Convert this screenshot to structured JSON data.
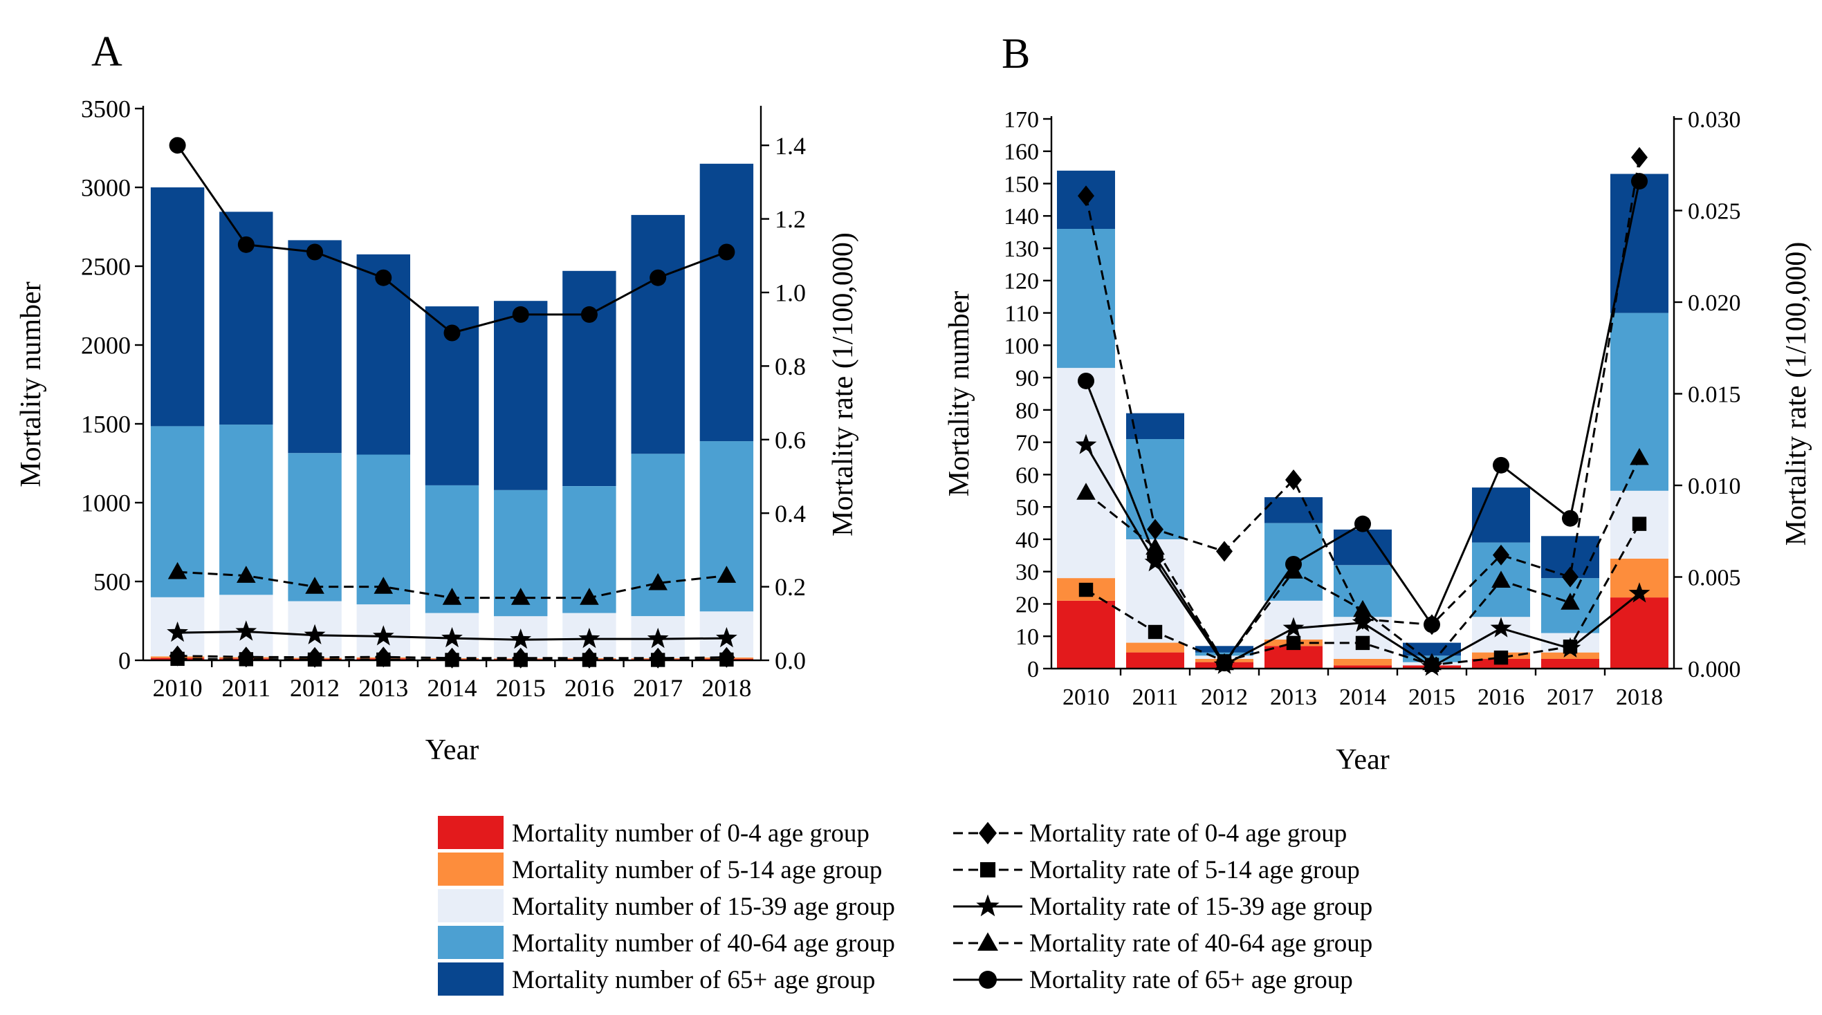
{
  "colors": {
    "age_0_4": "#e31a1c",
    "age_5_14": "#fd8d3c",
    "age_15_39": "#e8eef8",
    "age_40_64": "#4ca0d2",
    "age_65_plus": "#08468f",
    "line": "#000000"
  },
  "legend": {
    "bars": [
      {
        "key": "age_0_4",
        "label": "Mortality number of 0-4 age group"
      },
      {
        "key": "age_5_14",
        "label": "Mortality number of 5-14 age group"
      },
      {
        "key": "age_15_39",
        "label": "Mortality  number of 15-39 age group"
      },
      {
        "key": "age_40_64",
        "label": "Mortality  number of 40-64 age group"
      },
      {
        "key": "age_65_plus",
        "label": "Mortality  number of 65+ age group"
      }
    ],
    "lines": [
      {
        "key": "age_0_4",
        "marker": "diamond",
        "dash": true,
        "label": "Mortality rate of 0-4 age group"
      },
      {
        "key": "age_5_14",
        "marker": "square",
        "dash": true,
        "label": "Mortality  rate of 5-14 age group"
      },
      {
        "key": "age_15_39",
        "marker": "star",
        "dash": false,
        "label": "Mortality  rate of 15-39 age group"
      },
      {
        "key": "age_40_64",
        "marker": "triangle",
        "dash": true,
        "label": "Mortality  rate of 40-64 age group"
      },
      {
        "key": "age_65_plus",
        "marker": "circle",
        "dash": false,
        "label": "Mortality  rate of  65+ age group"
      }
    ]
  },
  "chart_data": [
    {
      "panel_label": "A",
      "type": "bar",
      "stacked": true,
      "categories": [
        "2010",
        "2011",
        "2012",
        "2013",
        "2014",
        "2015",
        "2016",
        "2017",
        "2018"
      ],
      "xlabel": "Year",
      "ylabel": "Mortality  number",
      "y2label": "Mortality rate (1/100,000)",
      "ylim": [
        0,
        3500
      ],
      "y2lim": [
        0,
        1.5
      ],
      "yticks": [
        0,
        500,
        1000,
        1500,
        2000,
        2500,
        3000,
        3500
      ],
      "yticklabels": [
        "0",
        "500",
        "1000",
        "1500",
        "2000",
        "2500",
        "3000",
        "3500"
      ],
      "y2ticks": [
        0,
        0.2,
        0.4,
        0.6,
        0.8,
        1.0,
        1.2,
        1.4
      ],
      "y2ticklabels": [
        "0.0",
        "0.2",
        "0.4",
        "0.6",
        "0.8",
        "1.0",
        "1.2",
        "1.4"
      ],
      "bar_series": [
        {
          "key": "age_0_4",
          "name": "Mortality number of 0-4 age group",
          "values": [
            15,
            12,
            10,
            12,
            8,
            8,
            8,
            8,
            10
          ]
        },
        {
          "key": "age_5_14",
          "name": "Mortality number of 5-14 age group",
          "values": [
            10,
            8,
            6,
            7,
            5,
            4,
            5,
            5,
            8
          ]
        },
        {
          "key": "age_15_39",
          "name": "Mortality  number of 15-39 age group",
          "values": [
            375,
            395,
            359,
            336,
            287,
            268,
            287,
            267,
            292
          ]
        },
        {
          "key": "age_40_64",
          "name": "Mortality  number of 40-64 age group",
          "values": [
            1085,
            1080,
            940,
            950,
            810,
            800,
            805,
            1030,
            1080
          ]
        },
        {
          "key": "age_65_plus",
          "name": "Mortality  number of 65+ age group",
          "values": [
            1515,
            1350,
            1350,
            1270,
            1135,
            1200,
            1365,
            1515,
            1760
          ]
        }
      ],
      "line_series": [
        {
          "key": "age_0_4",
          "name": "Mortality rate of 0-4 age group",
          "marker": "diamond",
          "dash": true,
          "values": [
            0.012,
            0.009,
            0.008,
            0.009,
            0.006,
            0.006,
            0.006,
            0.006,
            0.008
          ]
        },
        {
          "key": "age_5_14",
          "name": "Mortality  rate of 5-14 age group",
          "marker": "square",
          "dash": true,
          "values": [
            0.004,
            0.003,
            0.002,
            0.002,
            0.001,
            0.001,
            0.001,
            0.001,
            0.002
          ]
        },
        {
          "key": "age_15_39",
          "name": "Mortality  rate of 15-39 age group",
          "marker": "star",
          "dash": false,
          "values": [
            0.075,
            0.078,
            0.068,
            0.065,
            0.06,
            0.056,
            0.058,
            0.058,
            0.06
          ]
        },
        {
          "key": "age_40_64",
          "name": "Mortality  rate of 40-64 age group",
          "marker": "triangle",
          "dash": true,
          "values": [
            0.24,
            0.23,
            0.2,
            0.2,
            0.17,
            0.17,
            0.17,
            0.21,
            0.23
          ]
        },
        {
          "key": "age_65_plus",
          "name": "Mortality  rate of  65+ age group",
          "marker": "circle",
          "dash": false,
          "values": [
            1.4,
            1.13,
            1.11,
            1.04,
            0.89,
            0.94,
            0.94,
            1.04,
            1.11
          ]
        }
      ]
    },
    {
      "panel_label": "B",
      "type": "bar",
      "stacked": true,
      "categories": [
        "2010",
        "2011",
        "2012",
        "2013",
        "2014",
        "2015",
        "2016",
        "2017",
        "2018"
      ],
      "xlabel": "Year",
      "ylabel": "Mortality  number",
      "y2label": "Mortality rate (1/100,000)",
      "ylim": [
        0,
        170
      ],
      "y2lim": [
        0,
        0.03
      ],
      "yticks": [
        0,
        10,
        20,
        30,
        40,
        50,
        60,
        70,
        80,
        90,
        100,
        110,
        120,
        130,
        140,
        150,
        160,
        170
      ],
      "yticklabels": [
        "0",
        "10",
        "20",
        "30",
        "40",
        "50",
        "60",
        "70",
        "80",
        "90",
        "100",
        "110",
        "120",
        "130",
        "140",
        "150",
        "160",
        "170"
      ],
      "y2ticks": [
        0,
        0.005,
        0.01,
        0.015,
        0.02,
        0.025,
        0.03
      ],
      "y2ticklabels": [
        "0.000",
        "0.005",
        "0.010",
        "0.015",
        "0.020",
        "0.025",
        "0.030"
      ],
      "bar_series": [
        {
          "key": "age_0_4",
          "name": "Mortality number of 0-4 age group",
          "values": [
            21,
            5,
            2,
            7,
            1,
            1,
            3,
            3,
            22
          ]
        },
        {
          "key": "age_5_14",
          "name": "Mortality number of 5-14 age group",
          "values": [
            7,
            3,
            1,
            2,
            2,
            0,
            2,
            2,
            12
          ]
        },
        {
          "key": "age_15_39",
          "name": "Mortality  number of 15-39 age group",
          "values": [
            65,
            32,
            1,
            12,
            13,
            1,
            11,
            6,
            21
          ]
        },
        {
          "key": "age_40_64",
          "name": "Mortality  number of 40-64 age group",
          "values": [
            43,
            31,
            1,
            24,
            16,
            2,
            23,
            17,
            55
          ]
        },
        {
          "key": "age_65_plus",
          "name": "Mortality  number of 65+ age group",
          "values": [
            18,
            8,
            2,
            8,
            11,
            4,
            17,
            13,
            43
          ]
        }
      ],
      "line_series": [
        {
          "key": "age_0_4",
          "name": "Mortality rate of 0-4 age group",
          "marker": "diamond",
          "dash": true,
          "values": [
            0.0258,
            0.0076,
            0.0064,
            0.0103,
            0.0027,
            0.0024,
            0.0062,
            0.005,
            0.0279
          ]
        },
        {
          "key": "age_5_14",
          "name": "Mortality  rate of 5-14 age group",
          "marker": "square",
          "dash": true,
          "values": [
            0.0043,
            0.002,
            0.0004,
            0.0014,
            0.0014,
            0.0002,
            0.0006,
            0.0012,
            0.0079
          ]
        },
        {
          "key": "age_15_39",
          "name": "Mortality  rate of 15-39 age group",
          "marker": "star",
          "dash": false,
          "values": [
            0.0122,
            0.0058,
            0.0002,
            0.0022,
            0.0025,
            0.0001,
            0.0022,
            0.0011,
            0.0041
          ]
        },
        {
          "key": "age_40_64",
          "name": "Mortality  rate of 40-64 age group",
          "marker": "triangle",
          "dash": true,
          "values": [
            0.0096,
            0.0066,
            0.0003,
            0.0053,
            0.0032,
            0.0003,
            0.0048,
            0.0036,
            0.0115
          ]
        },
        {
          "key": "age_65_plus",
          "name": "Mortality  rate of  65+ age group",
          "marker": "circle",
          "dash": false,
          "values": [
            0.0157,
            0.0061,
            0.0003,
            0.0057,
            0.0079,
            0.0024,
            0.0111,
            0.0082,
            0.0266
          ]
        }
      ]
    }
  ]
}
